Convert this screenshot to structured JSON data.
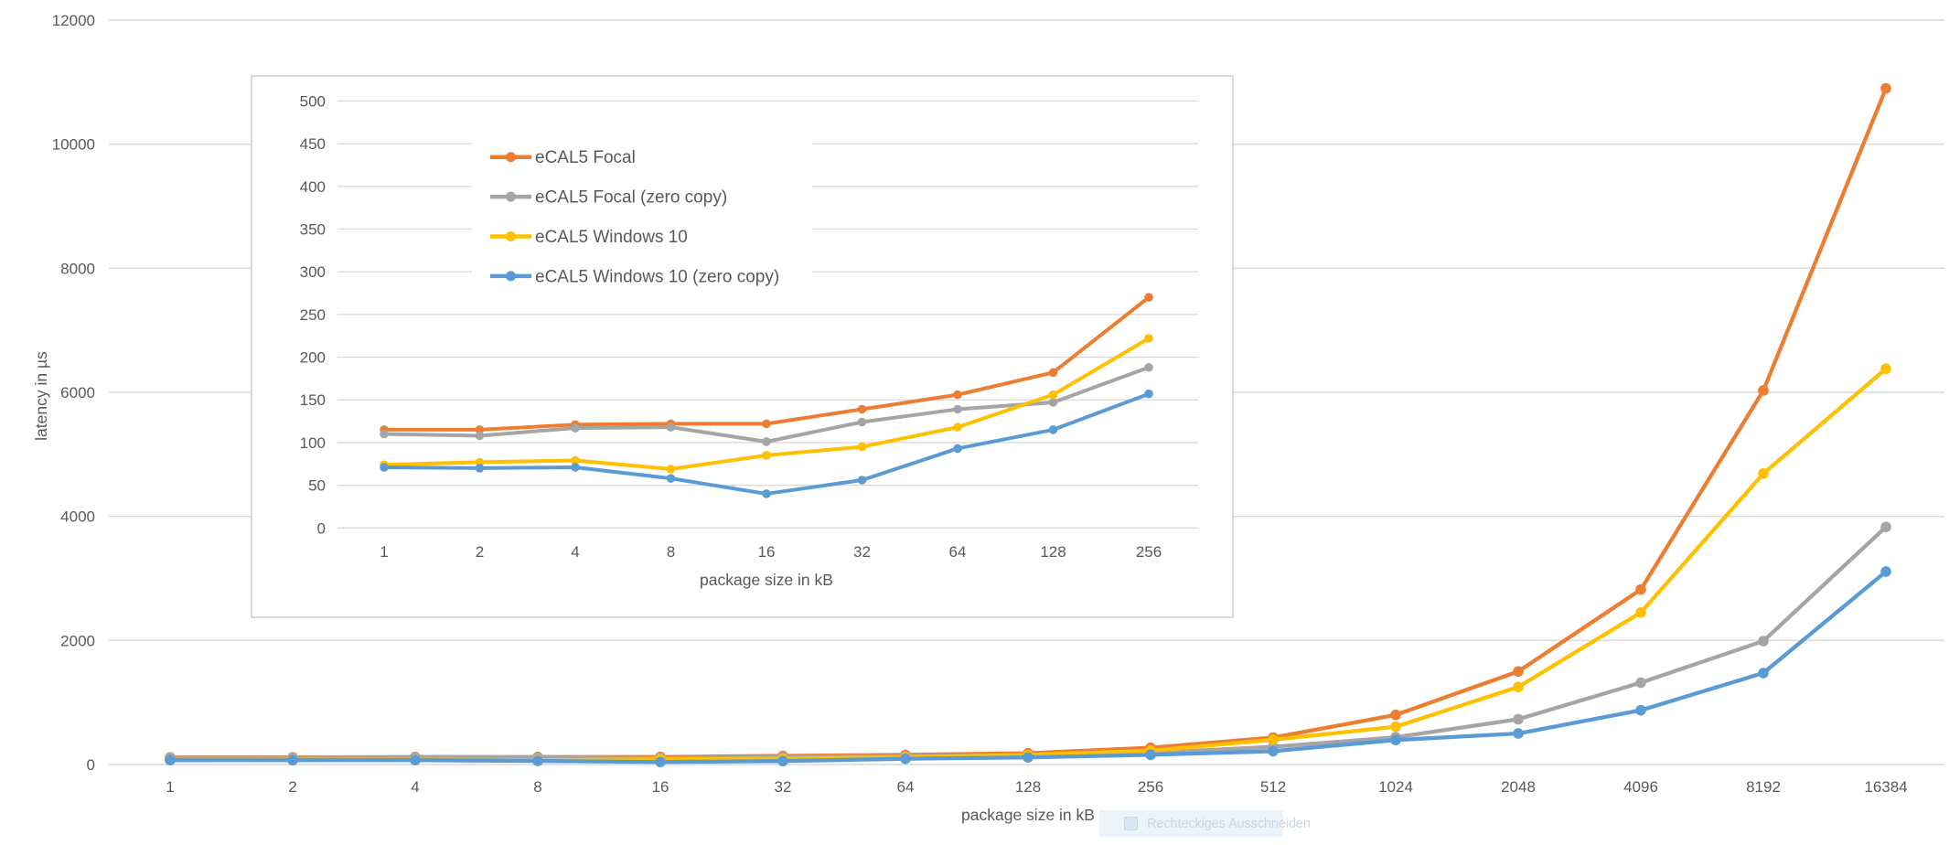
{
  "overlay_tooltip": {
    "label": "Rechteckiges Ausschneiden"
  },
  "chart_data": {
    "type": "line",
    "title": "",
    "xlabel": "package size in kB",
    "ylabel": "latency in µs",
    "categories": [
      1,
      2,
      4,
      8,
      16,
      32,
      64,
      128,
      256,
      512,
      1024,
      2048,
      4096,
      8192,
      16384
    ],
    "x_tick_labels": [
      "1",
      "2",
      "4",
      "8",
      "16",
      "32",
      "64",
      "128",
      "256",
      "512",
      "1024",
      "2048",
      "4096",
      "8192",
      "16384"
    ],
    "main_axis": {
      "ylim": [
        0,
        12000
      ],
      "yticks": [
        0,
        2000,
        4000,
        6000,
        8000,
        10000,
        12000
      ],
      "grid": true
    },
    "series": [
      {
        "name": "eCAL5 Focal",
        "color": "#ED7D31",
        "values": [
          115,
          115,
          121,
          122,
          122,
          139,
          156,
          182,
          270,
          435,
          800,
          1500,
          2820,
          6030,
          10900
        ]
      },
      {
        "name": "eCAL5 Focal (zero copy)",
        "color": "#A5A5A5",
        "values": [
          110,
          108,
          117,
          118,
          101,
          124,
          139,
          147,
          188,
          285,
          440,
          730,
          1320,
          1990,
          3830
        ]
      },
      {
        "name": "eCAL5 Windows 10",
        "color": "#FFC000",
        "values": [
          74,
          77,
          79,
          69,
          85,
          95,
          118,
          156,
          222,
          400,
          610,
          1250,
          2450,
          4690,
          6380
        ]
      },
      {
        "name": "eCAL5 Windows 10 (zero copy)",
        "color": "#5B9BD5",
        "values": [
          71,
          70,
          71,
          58,
          40,
          56,
          93,
          115,
          157,
          215,
          395,
          500,
          875,
          1475,
          3110
        ]
      }
    ],
    "inset": {
      "description": "zoomed view of the same four series for package sizes 1-256 kB",
      "categories": [
        1,
        2,
        4,
        8,
        16,
        32,
        64,
        128,
        256
      ],
      "x_tick_labels": [
        "1",
        "2",
        "4",
        "8",
        "16",
        "32",
        "64",
        "128",
        "256"
      ],
      "xlabel": "package size in kB",
      "ylim": [
        0,
        500
      ],
      "yticks": [
        0,
        50,
        100,
        150,
        200,
        250,
        300,
        350,
        400,
        450,
        500
      ],
      "grid": true,
      "values_note": "first 9 points of each main series"
    },
    "legend": {
      "position": "top of inset",
      "entries": [
        "eCAL5 Focal",
        "eCAL5 Focal (zero copy)",
        "eCAL5 Windows 10",
        "eCAL5 Windows 10 (zero copy)"
      ]
    },
    "colors": {
      "gridline": "#D9D9D9",
      "tick_text": "#595959",
      "inset_border": "#D0D0D0"
    }
  }
}
